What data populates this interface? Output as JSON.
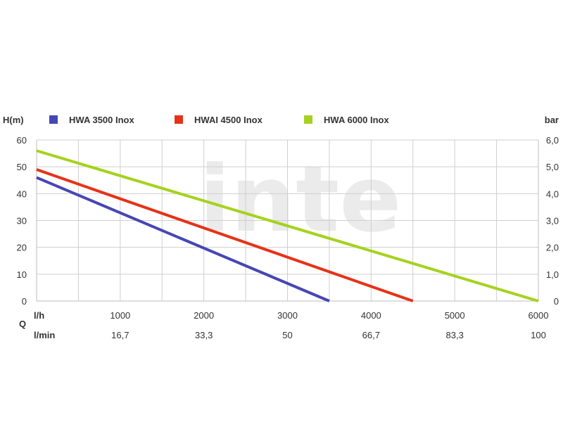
{
  "watermark": "inte",
  "chart_data": {
    "type": "line",
    "y_left_label": "H(m)",
    "y_right_label": "bar",
    "q_label": "Q",
    "x_lh_label": "l/h",
    "x_lmin_label": "l/min",
    "xlim": [
      0,
      6000
    ],
    "ylim": [
      0,
      60
    ],
    "grid": true,
    "legend_position": "top",
    "x_ticks": [
      {
        "value": 1000,
        "label": "1000"
      },
      {
        "value": 2000,
        "label": "2000"
      },
      {
        "value": 3000,
        "label": "3000"
      },
      {
        "value": 4000,
        "label": "4000"
      },
      {
        "value": 5000,
        "label": "5000"
      },
      {
        "value": 6000,
        "label": "6000"
      }
    ],
    "x_lmin_ticks": [
      {
        "value": 1000,
        "label": "16,7"
      },
      {
        "value": 2000,
        "label": "33,3"
      },
      {
        "value": 3000,
        "label": "50"
      },
      {
        "value": 4000,
        "label": "66,7"
      },
      {
        "value": 5000,
        "label": "83,3"
      },
      {
        "value": 6000,
        "label": "100"
      }
    ],
    "y_ticks": [
      {
        "value": 0,
        "label": "0"
      },
      {
        "value": 10,
        "label": "10"
      },
      {
        "value": 20,
        "label": "20"
      },
      {
        "value": 30,
        "label": "30"
      },
      {
        "value": 40,
        "label": "40"
      },
      {
        "value": 50,
        "label": "50"
      },
      {
        "value": 60,
        "label": "60"
      }
    ],
    "y_right_ticks": [
      {
        "value": 0,
        "label": "0"
      },
      {
        "value": 10,
        "label": "1,0"
      },
      {
        "value": 20,
        "label": "2,0"
      },
      {
        "value": 30,
        "label": "3,0"
      },
      {
        "value": 40,
        "label": "4,0"
      },
      {
        "value": 50,
        "label": "5,0"
      },
      {
        "value": 60,
        "label": "6,0"
      }
    ],
    "series": [
      {
        "name": "HWA 3500 Inox",
        "color": "#4646b4",
        "x": [
          0,
          3500
        ],
        "y": [
          46,
          0
        ]
      },
      {
        "name": "HWAI 4500 Inox",
        "color": "#e63219",
        "x": [
          0,
          4500
        ],
        "y": [
          49,
          0
        ]
      },
      {
        "name": "HWA 6000 Inox",
        "color": "#a5d21e",
        "x": [
          0,
          6000
        ],
        "y": [
          56,
          0
        ]
      }
    ]
  }
}
